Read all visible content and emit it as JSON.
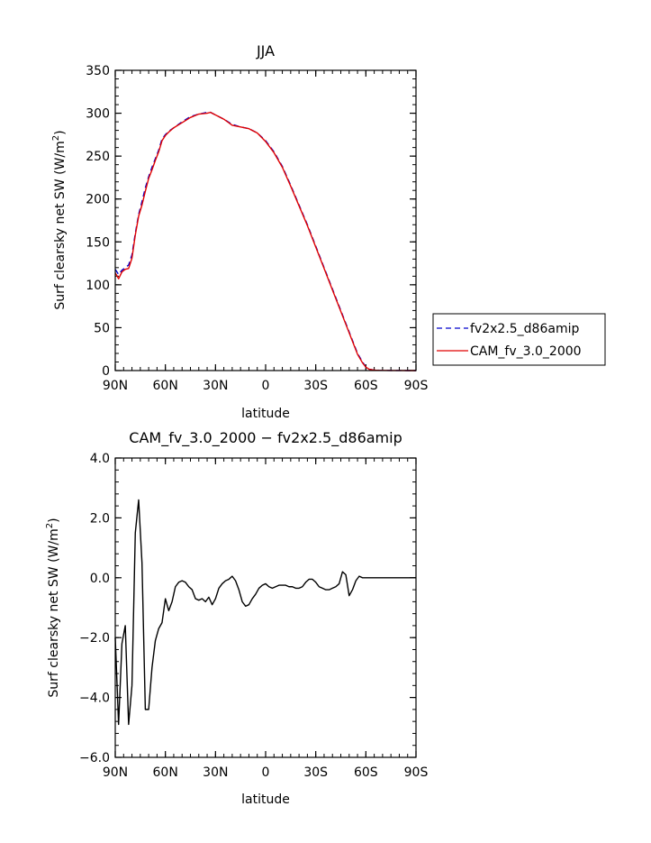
{
  "chart_data": [
    {
      "type": "line",
      "title": "JJA",
      "xlabel": "latitude",
      "ylabel_main": "Surf clearsky net SW (W/m",
      "ylabel_sup": "2",
      "ylabel_close": ")",
      "xlim": [
        90,
        -90
      ],
      "ylim": [
        0,
        350
      ],
      "x_ticks": [
        90,
        60,
        30,
        0,
        -30,
        -60,
        -90
      ],
      "x_tick_labels": [
        "90N",
        "60N",
        "30N",
        "0",
        "30S",
        "60S",
        "90S"
      ],
      "y_ticks": [
        0,
        50,
        100,
        150,
        200,
        250,
        300,
        350
      ],
      "y_tick_labels": [
        "0",
        "50",
        "100",
        "150",
        "200",
        "250",
        "300",
        "350"
      ],
      "legend_position": "right",
      "series": [
        {
          "name": "fv2x2.5_d86amip",
          "color": "#0000cc",
          "dash": true,
          "x": [
            90,
            88,
            86,
            84,
            82,
            80,
            78,
            76,
            74,
            72,
            70,
            68,
            66,
            64,
            62,
            60,
            58,
            55,
            50,
            45,
            40,
            35,
            33,
            30,
            28,
            25,
            20,
            15,
            10,
            5,
            0,
            -5,
            -10,
            -15,
            -20,
            -25,
            -30,
            -35,
            -40,
            -45,
            -50,
            -55,
            -58,
            -60,
            -62,
            -64,
            -66,
            -68,
            -70,
            -75,
            -80,
            -85,
            -90
          ],
          "values": [
            118,
            112,
            117,
            120,
            123,
            135,
            160,
            182,
            197,
            213,
            226,
            237,
            247,
            257,
            270,
            275,
            279,
            283,
            290,
            296,
            299,
            301,
            301,
            298,
            296,
            293,
            287,
            284,
            282,
            277,
            268,
            255,
            238,
            216,
            193,
            170,
            145,
            120,
            95,
            70,
            45,
            20,
            10,
            4,
            1.5,
            0.8,
            0.5,
            0.3,
            0.2,
            0.1,
            0.05,
            0,
            0
          ]
        },
        {
          "name": "CAM_fv_3.0_2000",
          "color": "#e00000",
          "dash": false,
          "x": [
            90,
            88,
            86,
            84,
            82,
            80,
            78,
            76,
            74,
            72,
            70,
            68,
            66,
            64,
            62,
            60,
            58,
            55,
            50,
            45,
            40,
            35,
            33,
            30,
            28,
            25,
            20,
            15,
            10,
            5,
            0,
            -5,
            -10,
            -15,
            -20,
            -25,
            -30,
            -35,
            -40,
            -45,
            -50,
            -55,
            -58,
            -60,
            -62,
            -64,
            -66,
            -68,
            -70,
            -75,
            -80,
            -85,
            -90
          ],
          "values": [
            114,
            107,
            115,
            118,
            119,
            131,
            158,
            180,
            193,
            209,
            224,
            234,
            245,
            255,
            268,
            274,
            278,
            283,
            289,
            295,
            299,
            300,
            301,
            298,
            296,
            293,
            286,
            284,
            282,
            277,
            267,
            254,
            237,
            215,
            192,
            169,
            144,
            119,
            94,
            69,
            44,
            19,
            9,
            4,
            1.5,
            0.8,
            0.5,
            0.3,
            0.2,
            0.1,
            0.05,
            0,
            0
          ]
        }
      ]
    },
    {
      "type": "line",
      "title": "CAM_fv_3.0_2000 − fv2x2.5_d86amip",
      "xlabel": "latitude",
      "ylabel_main": "Surf clearsky net SW (W/m",
      "ylabel_sup": "2",
      "ylabel_close": ")",
      "xlim": [
        90,
        -90
      ],
      "ylim": [
        -6,
        4
      ],
      "x_ticks": [
        90,
        60,
        30,
        0,
        -30,
        -60,
        -90
      ],
      "x_tick_labels": [
        "90N",
        "60N",
        "30N",
        "0",
        "30S",
        "60S",
        "90S"
      ],
      "y_ticks": [
        -6,
        -4,
        -2,
        0,
        2,
        4
      ],
      "y_tick_labels": [
        "−6.0",
        "−4.0",
        "−2.0",
        "0.0",
        "2.0",
        "4.0"
      ],
      "series": [
        {
          "color": "#000000",
          "dash": false,
          "x": [
            90,
            88,
            86,
            84,
            82,
            80,
            78,
            76,
            74,
            72,
            70,
            68,
            66,
            64,
            62,
            60,
            58,
            56,
            54,
            52,
            50,
            48,
            46,
            44,
            42,
            40,
            38,
            36,
            34,
            32,
            30,
            28,
            26,
            24,
            22,
            20,
            18,
            16,
            14,
            12,
            10,
            8,
            6,
            4,
            2,
            0,
            -2,
            -4,
            -6,
            -8,
            -10,
            -12,
            -14,
            -16,
            -18,
            -20,
            -22,
            -24,
            -26,
            -28,
            -30,
            -32,
            -34,
            -36,
            -38,
            -40,
            -42,
            -44,
            -46,
            -48,
            -50,
            -52,
            -54,
            -56,
            -58,
            -60,
            -62,
            -64,
            -66,
            -68,
            -70,
            -75,
            -80,
            -85,
            -90
          ],
          "values": [
            -2.0,
            -4.9,
            -2.2,
            -1.6,
            -4.9,
            -3.6,
            1.5,
            2.6,
            0.5,
            -4.4,
            -4.4,
            -3.0,
            -2.1,
            -1.7,
            -1.5,
            -0.7,
            -1.1,
            -0.8,
            -0.3,
            -0.15,
            -0.1,
            -0.15,
            -0.3,
            -0.4,
            -0.7,
            -0.75,
            -0.7,
            -0.8,
            -0.65,
            -0.9,
            -0.7,
            -0.35,
            -0.2,
            -0.1,
            -0.05,
            0.05,
            -0.1,
            -0.4,
            -0.8,
            -0.95,
            -0.9,
            -0.7,
            -0.55,
            -0.35,
            -0.25,
            -0.2,
            -0.3,
            -0.35,
            -0.3,
            -0.25,
            -0.25,
            -0.25,
            -0.3,
            -0.3,
            -0.35,
            -0.35,
            -0.3,
            -0.15,
            -0.05,
            -0.05,
            -0.15,
            -0.3,
            -0.35,
            -0.4,
            -0.4,
            -0.35,
            -0.3,
            -0.2,
            0.2,
            0.1,
            -0.6,
            -0.4,
            -0.1,
            0.05,
            0.0,
            0.0,
            0.0,
            0.0,
            0.0,
            0.0,
            0.0,
            0.0,
            0.0,
            0.0,
            0.0
          ]
        }
      ]
    }
  ]
}
